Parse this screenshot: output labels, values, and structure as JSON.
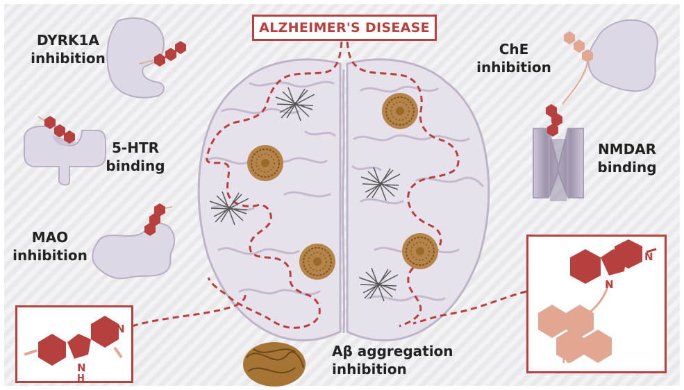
{
  "title": "ALZHEIMER'S DISEASE",
  "labels": {
    "dyrk1a_line1": "DYRK1A",
    "dyrk1a_line2": "inhibition",
    "htr_line1": "5-HTR",
    "htr_line2": "binding",
    "mao_line1": "MAO",
    "mao_line2": "inhibition",
    "che_line1": "ChE",
    "che_line2": "inhibition",
    "nmdar_line1": "NMDAR",
    "nmdar_line2": "binding",
    "abeta_line1": "Aβ aggregation",
    "abeta_line2": "inhibition"
  },
  "molecule_left": {
    "n_top": "N",
    "n_bottom": "N",
    "h_bottom": "H"
  },
  "molecule_right": {
    "n_top": "N",
    "n_middle": "N",
    "n_bottom": "N"
  },
  "colors": {
    "accent": "#b5403d",
    "hexagon_dark": "#b5403d",
    "hexagon_light": "#e1a793",
    "protein": "#ddd8e3",
    "brain": "#e6e1ea",
    "plaque": "#9a6a2a",
    "tangle": "#555555"
  }
}
